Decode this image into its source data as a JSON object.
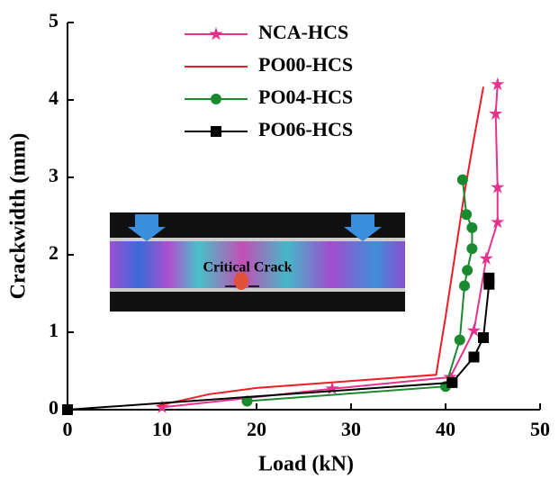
{
  "chart_data": {
    "type": "line",
    "xlabel": "Load (kN)",
    "ylabel": "Crackwidth (mm)",
    "xlim": [
      0,
      50
    ],
    "ylim": [
      0,
      5
    ],
    "xticks": [
      0,
      10,
      20,
      30,
      40,
      50
    ],
    "yticks": [
      0,
      1,
      2,
      3,
      4,
      5
    ],
    "legend": "upper center",
    "inset_label": "Critical Crack",
    "series": [
      {
        "name": "NCA-HCS",
        "color": "#e8318c",
        "marker": "star",
        "x": [
          10,
          28,
          40.5,
          43,
          44.3,
          45.5,
          45.5,
          45.3,
          45.5
        ],
        "values": [
          0.03,
          0.27,
          0.42,
          1.02,
          1.95,
          2.42,
          2.87,
          3.82,
          4.2
        ]
      },
      {
        "name": "PO00-HCS",
        "color": "#ee1c24",
        "marker": "none",
        "x": [
          9.5,
          15,
          20,
          30,
          39,
          40,
          41,
          42,
          43,
          44
        ],
        "values": [
          0.05,
          0.2,
          0.28,
          0.37,
          0.45,
          1.2,
          2,
          2.8,
          3.5,
          4.17
        ]
      },
      {
        "name": "PO04-HCS",
        "color": "#1a8a2e",
        "marker": "circle",
        "x": [
          19,
          40,
          41.5,
          42,
          42.3,
          42.8,
          42.8,
          42.2,
          41.8
        ],
        "values": [
          0.11,
          0.3,
          0.9,
          1.6,
          1.8,
          2.08,
          2.35,
          2.52,
          2.97
        ]
      },
      {
        "name": "PO06-HCS",
        "color": "#000000",
        "marker": "square",
        "x": [
          0,
          40.7,
          43,
          44,
          44.6,
          44.6
        ],
        "values": [
          0,
          0.35,
          0.68,
          0.93,
          1.62,
          1.7
        ]
      }
    ]
  }
}
